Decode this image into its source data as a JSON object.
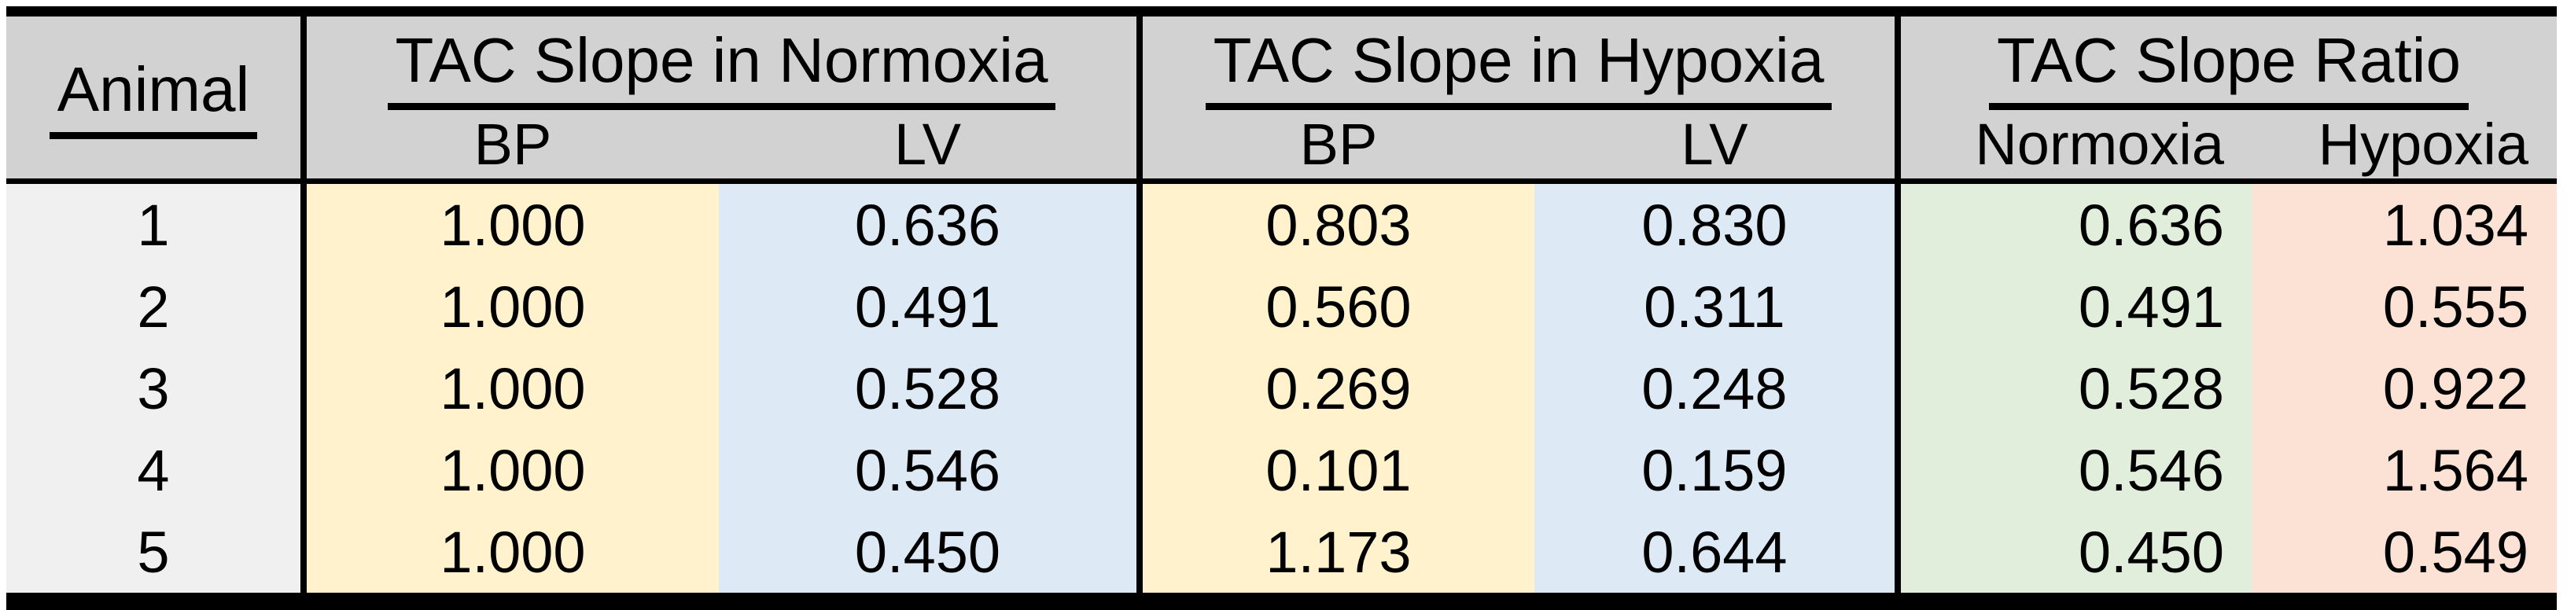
{
  "table": {
    "animal_header": "Animal",
    "groups": [
      {
        "title": "TAC Slope in Normoxia",
        "sub": [
          "BP",
          "LV"
        ]
      },
      {
        "title": "TAC Slope in Hypoxia",
        "sub": [
          "BP",
          "LV"
        ]
      },
      {
        "title": "TAC Slope Ratio",
        "sub": [
          "Normoxia",
          "Hypoxia"
        ]
      }
    ],
    "rows": [
      {
        "cells": [
          "1",
          "1.000",
          "0.636",
          "0.803",
          "0.830",
          "0.636",
          "1.034"
        ]
      },
      {
        "cells": [
          "2",
          "1.000",
          "0.491",
          "0.560",
          "0.311",
          "0.491",
          "0.555"
        ]
      },
      {
        "cells": [
          "3",
          "1.000",
          "0.528",
          "0.269",
          "0.248",
          "0.528",
          "0.922"
        ]
      },
      {
        "cells": [
          "4",
          "1.000",
          "0.546",
          "0.101",
          "0.159",
          "0.546",
          "1.564"
        ]
      },
      {
        "cells": [
          "5",
          "1.000",
          "0.450",
          "1.173",
          "0.644",
          "0.450",
          "0.549"
        ]
      }
    ],
    "colors": {
      "header_bg": "#D2D2D2",
      "animal_col_bg": "#F0F0F0",
      "bp_col_bg": "#FFF2CC",
      "lv_col_bg": "#DDE9F5",
      "ratio_normoxia_bg": "#E1EEDC",
      "ratio_hypoxia_bg": "#FBE2D5",
      "border": "#000000"
    }
  },
  "chart_data": {
    "type": "table",
    "columns": [
      "Animal",
      "TAC Slope in Normoxia - BP",
      "TAC Slope in Normoxia - LV",
      "TAC Slope in Hypoxia - BP",
      "TAC Slope in Hypoxia - LV",
      "TAC Slope Ratio - Normoxia",
      "TAC Slope Ratio - Hypoxia"
    ],
    "rows": [
      [
        1,
        1.0,
        0.636,
        0.803,
        0.83,
        0.636,
        1.034
      ],
      [
        2,
        1.0,
        0.491,
        0.56,
        0.311,
        0.491,
        0.555
      ],
      [
        3,
        1.0,
        0.528,
        0.269,
        0.248,
        0.528,
        0.922
      ],
      [
        4,
        1.0,
        0.546,
        0.101,
        0.159,
        0.546,
        1.564
      ],
      [
        5,
        1.0,
        0.45,
        1.173,
        0.644,
        0.45,
        0.549
      ]
    ]
  }
}
